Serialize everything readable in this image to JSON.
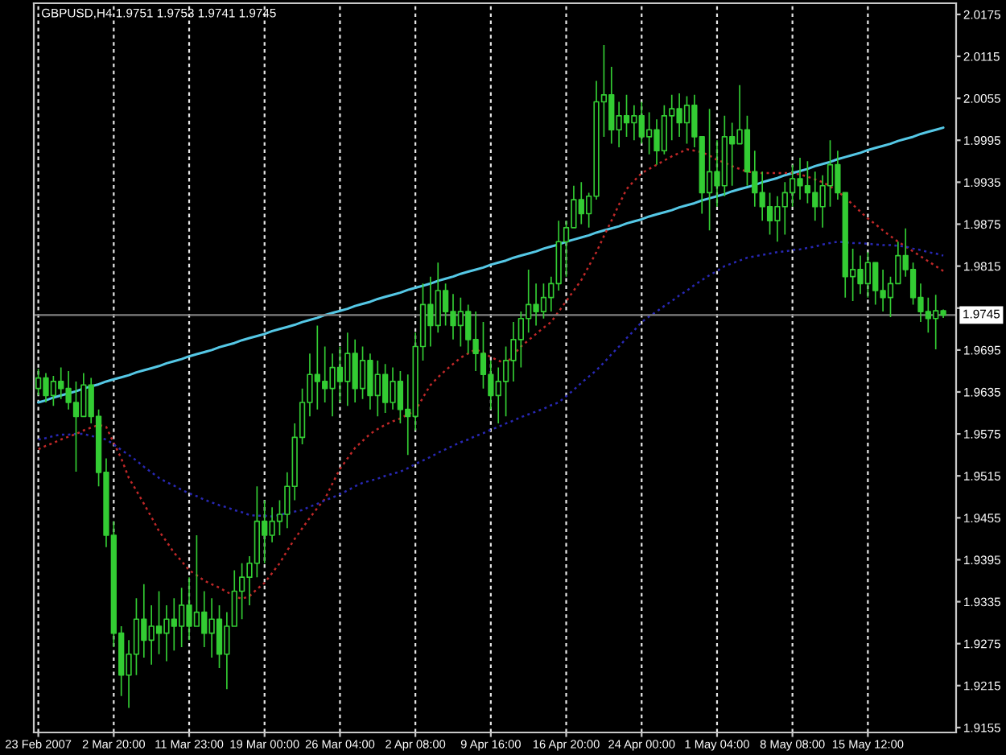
{
  "chart_data": {
    "type": "candlestick",
    "title": "GBPUSD,H4 1.9751 1.9753 1.9741 1.9745",
    "color": "#33cc33",
    "categories": [
      "23 Feb 2007",
      null,
      null,
      null,
      null,
      null,
      null,
      null,
      null,
      null,
      "2 Mar 20:00",
      null,
      null,
      null,
      null,
      null,
      null,
      null,
      null,
      null,
      "11 Mar 23:00",
      null,
      null,
      null,
      null,
      null,
      null,
      null,
      null,
      null,
      "19 Mar 00:00",
      null,
      null,
      null,
      null,
      null,
      null,
      null,
      null,
      null,
      "26 Mar 04:00",
      null,
      null,
      null,
      null,
      null,
      null,
      null,
      null,
      null,
      "2 Apr 08:00",
      null,
      null,
      null,
      null,
      null,
      null,
      null,
      null,
      null,
      "9 Apr 16:00",
      null,
      null,
      null,
      null,
      null,
      null,
      null,
      null,
      null,
      "16 Apr 20:00",
      null,
      null,
      null,
      null,
      null,
      null,
      null,
      null,
      null,
      "24 Apr 00:00",
      null,
      null,
      null,
      null,
      null,
      null,
      null,
      null,
      null,
      "1 May 04:00",
      null,
      null,
      null,
      null,
      null,
      null,
      null,
      null,
      null,
      "8 May 08:00",
      null,
      null,
      null,
      null,
      null,
      null,
      null,
      null,
      null,
      "15 May 12:00",
      null,
      null,
      null,
      null,
      null,
      null,
      null,
      null,
      null,
      null
    ],
    "ohlc": [
      [
        1.964,
        1.9668,
        1.963,
        1.9655
      ],
      [
        1.9655,
        1.9662,
        1.962,
        1.963
      ],
      [
        1.963,
        1.9658,
        1.9615,
        1.965
      ],
      [
        1.965,
        1.967,
        1.9625,
        1.964
      ],
      [
        1.964,
        1.9665,
        1.961,
        1.962
      ],
      [
        1.962,
        1.965,
        1.9521,
        1.96
      ],
      [
        1.96,
        1.9662,
        1.96,
        1.9645
      ],
      [
        1.9645,
        1.9655,
        1.959,
        1.96
      ],
      [
        1.96,
        1.961,
        1.95,
        1.952
      ],
      [
        1.952,
        1.954,
        1.9413,
        1.943
      ],
      [
        1.943,
        1.945,
        1.927,
        1.929
      ],
      [
        1.929,
        1.93,
        1.92,
        1.923
      ],
      [
        1.923,
        1.928,
        1.9183,
        1.926
      ],
      [
        1.926,
        1.934,
        1.923,
        1.931
      ],
      [
        1.931,
        1.936,
        1.9255,
        1.928
      ],
      [
        1.928,
        1.933,
        1.9245,
        1.93
      ],
      [
        1.93,
        1.935,
        1.926,
        1.929
      ],
      [
        1.929,
        1.933,
        1.925,
        1.931
      ],
      [
        1.931,
        1.934,
        1.9265,
        1.93
      ],
      [
        1.93,
        1.9355,
        1.927,
        1.933
      ],
      [
        1.933,
        1.937,
        1.928,
        1.93
      ],
      [
        1.93,
        1.943,
        1.93,
        1.932
      ],
      [
        1.932,
        1.935,
        1.927,
        1.929
      ],
      [
        1.929,
        1.934,
        1.9255,
        1.931
      ],
      [
        1.931,
        1.933,
        1.924,
        1.926
      ],
      [
        1.926,
        1.932,
        1.921,
        1.93
      ],
      [
        1.93,
        1.938,
        1.93,
        1.935
      ],
      [
        1.935,
        1.939,
        1.931,
        1.937
      ],
      [
        1.937,
        1.94,
        1.933,
        1.939
      ],
      [
        1.939,
        1.95,
        1.937,
        1.945
      ],
      [
        1.945,
        1.948,
        1.939,
        1.943
      ],
      [
        1.943,
        1.947,
        1.942,
        1.945
      ],
      [
        1.945,
        1.948,
        1.943,
        1.946
      ],
      [
        1.946,
        1.952,
        1.944,
        1.95
      ],
      [
        1.95,
        1.959,
        1.948,
        1.957
      ],
      [
        1.957,
        1.964,
        1.956,
        1.962
      ],
      [
        1.962,
        1.969,
        1.96,
        1.966
      ],
      [
        1.966,
        1.973,
        1.961,
        1.965
      ],
      [
        1.965,
        1.97,
        1.962,
        1.964
      ],
      [
        1.964,
        1.969,
        1.96,
        1.967
      ],
      [
        1.967,
        1.97,
        1.962,
        1.965
      ],
      [
        1.965,
        1.972,
        1.9615,
        1.969
      ],
      [
        1.969,
        1.971,
        1.962,
        1.964
      ],
      [
        1.964,
        1.97,
        1.9625,
        1.968
      ],
      [
        1.968,
        1.969,
        1.961,
        1.963
      ],
      [
        1.963,
        1.968,
        1.96,
        1.966
      ],
      [
        1.966,
        1.9675,
        1.9605,
        1.962
      ],
      [
        1.962,
        1.967,
        1.961,
        1.965
      ],
      [
        1.965,
        1.9665,
        1.959,
        1.961
      ],
      [
        1.961,
        1.966,
        1.9545,
        1.96
      ],
      [
        1.96,
        1.972,
        1.958,
        1.97
      ],
      [
        1.97,
        1.979,
        1.968,
        1.976
      ],
      [
        1.976,
        1.98,
        1.97,
        1.973
      ],
      [
        1.973,
        1.982,
        1.972,
        1.978
      ],
      [
        1.978,
        1.979,
        1.973,
        1.975
      ],
      [
        1.975,
        1.9775,
        1.971,
        1.973
      ],
      [
        1.973,
        1.977,
        1.97,
        1.975
      ],
      [
        1.975,
        1.976,
        1.969,
        1.971
      ],
      [
        1.971,
        1.975,
        1.9665,
        1.969
      ],
      [
        1.969,
        1.9735,
        1.964,
        1.966
      ],
      [
        1.966,
        1.968,
        1.961,
        1.963
      ],
      [
        1.963,
        1.967,
        1.959,
        1.965
      ],
      [
        1.965,
        1.97,
        1.96,
        1.968
      ],
      [
        1.968,
        1.9735,
        1.965,
        1.971
      ],
      [
        1.971,
        1.975,
        1.967,
        1.974
      ],
      [
        1.974,
        1.981,
        1.972,
        1.976
      ],
      [
        1.976,
        1.979,
        1.973,
        1.975
      ],
      [
        1.975,
        1.979,
        1.974,
        1.977
      ],
      [
        1.977,
        1.98,
        1.975,
        1.979
      ],
      [
        1.979,
        1.988,
        1.978,
        1.985
      ],
      [
        1.985,
        1.988,
        1.98,
        1.987
      ],
      [
        1.987,
        1.993,
        1.987,
        1.991
      ],
      [
        1.991,
        1.9935,
        1.9875,
        1.989
      ],
      [
        1.989,
        1.992,
        1.987,
        1.9915
      ],
      [
        1.9915,
        2.008,
        1.991,
        2.005
      ],
      [
        2.005,
        2.0131,
        2.0,
        2.006
      ],
      [
        2.006,
        2.01,
        1.999,
        2.001
      ],
      [
        2.001,
        2.005,
        1.9985,
        2.003
      ],
      [
        2.003,
        2.006,
        2.0,
        2.002
      ],
      [
        2.002,
        2.0045,
        1.9995,
        2.003
      ],
      [
        2.003,
        2.005,
        1.999,
        2.0
      ],
      [
        2.0,
        2.0035,
        1.9975,
        2.001
      ],
      [
        2.001,
        2.0025,
        1.996,
        1.998
      ],
      [
        1.998,
        2.0045,
        1.9975,
        2.003
      ],
      [
        2.003,
        2.006,
        1.9995,
        2.004
      ],
      [
        2.004,
        2.0062,
        2.0,
        2.002
      ],
      [
        2.002,
        2.0058,
        1.999,
        2.0045
      ],
      [
        2.0045,
        2.006,
        1.9985,
        2.0
      ],
      [
        2.0,
        2.0,
        1.989,
        1.992
      ],
      [
        1.992,
        2.004,
        1.9866,
        1.995
      ],
      [
        1.995,
        1.9995,
        1.99,
        1.993
      ],
      [
        1.993,
        2.003,
        1.9915,
        2.0
      ],
      [
        2.0,
        2.002,
        1.993,
        1.999
      ],
      [
        1.999,
        2.0074,
        1.999,
        2.001
      ],
      [
        2.001,
        2.003,
        1.993,
        1.995
      ],
      [
        1.995,
        1.998,
        1.99,
        1.992
      ],
      [
        1.992,
        1.995,
        1.988,
        1.99
      ],
      [
        1.99,
        1.992,
        1.986,
        1.988
      ],
      [
        1.988,
        1.9915,
        1.985,
        1.99
      ],
      [
        1.99,
        1.9935,
        1.986,
        1.992
      ],
      [
        1.992,
        1.996,
        1.99,
        1.994
      ],
      [
        1.994,
        1.997,
        1.991,
        1.993
      ],
      [
        1.993,
        1.9965,
        1.9905,
        1.992
      ],
      [
        1.992,
        1.995,
        1.988,
        1.99
      ],
      [
        1.99,
        1.9945,
        1.987,
        1.993
      ],
      [
        1.993,
        1.9995,
        1.99,
        1.996
      ],
      [
        1.996,
        1.998,
        1.991,
        1.992
      ],
      [
        1.992,
        1.992,
        1.977,
        1.98
      ],
      [
        1.98,
        1.984,
        1.9765,
        1.981
      ],
      [
        1.981,
        1.983,
        1.9775,
        1.979
      ],
      [
        1.979,
        1.9835,
        1.977,
        1.982
      ],
      [
        1.982,
        1.982,
        1.976,
        1.978
      ],
      [
        1.978,
        1.981,
        1.975,
        1.977
      ],
      [
        1.977,
        1.98,
        1.9742,
        1.979
      ],
      [
        1.979,
        1.985,
        1.979,
        1.983
      ],
      [
        1.983,
        1.9869,
        1.98,
        1.981
      ],
      [
        1.981,
        1.982,
        1.976,
        1.977
      ],
      [
        1.977,
        1.979,
        1.9735,
        1.975
      ],
      [
        1.975,
        1.977,
        1.972,
        1.974
      ],
      [
        1.974,
        1.9774,
        1.9696,
        1.9751
      ],
      [
        1.9751,
        1.9753,
        1.9741,
        1.9745
      ]
    ],
    "series": [
      {
        "type": "line",
        "line_style": "solid",
        "color": "#55c8e6",
        "values": [
          1.962,
          1.9623,
          1.9627,
          1.963,
          1.9633,
          1.9636,
          1.964,
          1.9643,
          1.9646,
          1.965,
          1.9653,
          1.9656,
          1.9659,
          1.9663,
          1.9666,
          1.9669,
          1.9672,
          1.9676,
          1.9679,
          1.9682,
          1.9686,
          1.9689,
          1.9692,
          1.9695,
          1.9699,
          1.9702,
          1.9705,
          1.9709,
          1.9712,
          1.9715,
          1.9718,
          1.9722,
          1.9725,
          1.9728,
          1.9731,
          1.9735,
          1.9738,
          1.9741,
          1.9745,
          1.9748,
          1.9751,
          1.9754,
          1.9758,
          1.9761,
          1.9764,
          1.9768,
          1.9771,
          1.9774,
          1.9777,
          1.9781,
          1.9784,
          1.9787,
          1.979,
          1.9794,
          1.9797,
          1.98,
          1.9804,
          1.9807,
          1.981,
          1.9813,
          1.9817,
          1.982,
          1.9823,
          1.9827,
          1.983,
          1.9833,
          1.9836,
          1.984,
          1.9843,
          1.9846,
          1.985,
          1.9853,
          1.9856,
          1.9859,
          1.9863,
          1.9866,
          1.9869,
          1.9872,
          1.9876,
          1.9879,
          1.9882,
          1.9886,
          1.9889,
          1.9892,
          1.9895,
          1.9899,
          1.9902,
          1.9905,
          1.9909,
          1.9912,
          1.9915,
          1.9918,
          1.9922,
          1.9925,
          1.9928,
          1.9931,
          1.9935,
          1.9938,
          1.9941,
          1.9945,
          1.9948,
          1.9951,
          1.9954,
          1.9958,
          1.9961,
          1.9964,
          1.9968,
          1.9971,
          1.9974,
          1.9977,
          1.9981,
          1.9984,
          1.9987,
          1.999,
          1.9994,
          1.9997,
          2.0,
          2.0004,
          2.0007,
          2.001,
          2.0013
        ]
      },
      {
        "type": "line",
        "line_style": "dotted",
        "color": "#c02828",
        "values": [
          1.9553,
          1.9558,
          1.9562,
          1.9567,
          1.9571,
          1.9575,
          1.958,
          1.9584,
          1.9588,
          1.9585,
          1.9562,
          1.954,
          1.9512,
          1.9494,
          1.9475,
          1.9456,
          1.9436,
          1.9421,
          1.9405,
          1.9393,
          1.938,
          1.9373,
          1.9365,
          1.936,
          1.9355,
          1.9349,
          1.9343,
          1.9339,
          1.9343,
          1.9353,
          1.9362,
          1.9376,
          1.939,
          1.9408,
          1.9425,
          1.944,
          1.9455,
          1.9469,
          1.9482,
          1.9504,
          1.9525,
          1.954,
          1.9555,
          1.9565,
          1.9575,
          1.9582,
          1.9588,
          1.9593,
          1.9597,
          1.9603,
          1.9608,
          1.9627,
          1.9645,
          1.9656,
          1.9666,
          1.9675,
          1.9684,
          1.969,
          1.9696,
          1.9691,
          1.9685,
          1.968,
          1.9675,
          1.9688,
          1.97,
          1.9709,
          1.9718,
          1.9727,
          1.9735,
          1.975,
          1.9765,
          1.978,
          1.9795,
          1.9815,
          1.9835,
          1.9858,
          1.988,
          1.9903,
          1.9925,
          1.9937,
          1.9948,
          1.9954,
          1.996,
          1.9966,
          1.9972,
          1.9977,
          1.9982,
          1.998,
          1.9978,
          1.9973,
          1.9967,
          1.9963,
          1.9958,
          1.9954,
          1.995,
          1.9949,
          1.9948,
          1.9948,
          1.9948,
          1.9948,
          1.9948,
          1.9946,
          1.9943,
          1.9939,
          1.9935,
          1.9929,
          1.9922,
          1.9913,
          1.9903,
          1.9893,
          1.9883,
          1.9875,
          1.9866,
          1.9858,
          1.985,
          1.9843,
          1.9836,
          1.9829,
          1.9822,
          1.9815,
          1.9808
        ]
      },
      {
        "type": "line",
        "line_style": "dotted",
        "color": "#2828b4",
        "values": [
          1.9567,
          1.9569,
          1.9572,
          1.9574,
          1.9574,
          1.9575,
          1.9575,
          1.9572,
          1.957,
          1.9567,
          1.956,
          1.9552,
          1.9545,
          1.9537,
          1.9528,
          1.952,
          1.9512,
          1.9506,
          1.9501,
          1.9495,
          1.949,
          1.9486,
          1.9481,
          1.9477,
          1.9473,
          1.947,
          1.9466,
          1.9463,
          1.9459,
          1.9458,
          1.9458,
          1.9457,
          1.9459,
          1.9462,
          1.9464,
          1.9466,
          1.9471,
          1.9475,
          1.948,
          1.9484,
          1.9489,
          1.9494,
          1.95,
          1.9505,
          1.9508,
          1.9511,
          1.9515,
          1.9518,
          1.9521,
          1.9526,
          1.9532,
          1.9537,
          1.9542,
          1.9548,
          1.9553,
          1.9558,
          1.9563,
          1.9567,
          1.9572,
          1.9576,
          1.9581,
          1.9585,
          1.959,
          1.9594,
          1.9599,
          1.9603,
          1.9607,
          1.9611,
          1.9616,
          1.962,
          1.9629,
          1.9638,
          1.9648,
          1.9657,
          1.9666,
          1.9677,
          1.9689,
          1.97,
          1.9712,
          1.9723,
          1.9735,
          1.9743,
          1.975,
          1.9758,
          1.9765,
          1.9773,
          1.978,
          1.9788,
          1.9795,
          1.9802,
          1.9808,
          1.9815,
          1.9819,
          1.9823,
          1.9827,
          1.9829,
          1.9831,
          1.9833,
          1.9835,
          1.9836,
          1.9838,
          1.9839,
          1.9841,
          1.9843,
          1.9846,
          1.9848,
          1.985,
          1.9849,
          1.9848,
          1.9848,
          1.9847,
          1.9846,
          1.9845,
          1.9845,
          1.9844,
          1.9843,
          1.984,
          1.9838,
          1.9835,
          1.9833,
          1.983
        ]
      }
    ],
    "ylim": [
      1.9148,
      2.0191
    ],
    "yticks": [
      2.0175,
      2.0115,
      2.0055,
      1.9995,
      1.9935,
      1.9875,
      1.9815,
      {
        "value": 1.9755,
        "label": null
      },
      1.9695,
      1.9635,
      1.9575,
      1.9515,
      1.9455,
      1.9395,
      1.9335,
      1.9275,
      1.9215,
      1.9155
    ],
    "grid": "x",
    "ref_lines": [
      {
        "axis": "y",
        "value": 1.9745,
        "label": "1.9745",
        "color": "#808080"
      }
    ]
  }
}
